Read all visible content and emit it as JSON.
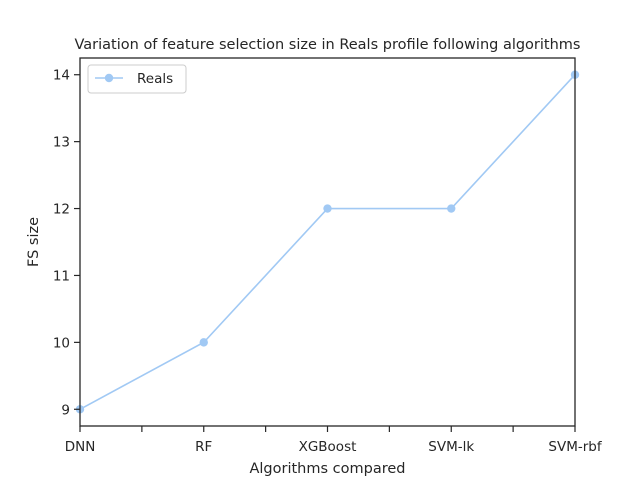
{
  "chart_data": {
    "type": "line",
    "title": "Variation of feature selection size in Reals profile following algorithms",
    "xlabel": "Algorithms compared",
    "ylabel": "FS size",
    "categories": [
      "DNN",
      "RF",
      "XGBoost",
      "SVM-lk",
      "SVM-rbf"
    ],
    "series": [
      {
        "name": "Reals",
        "values": [
          9,
          10,
          12,
          12,
          14
        ],
        "color": "#a1c9f4"
      }
    ],
    "ylim": [
      8.75,
      14.25
    ],
    "yticks": [
      9,
      10,
      11,
      12,
      13,
      14
    ],
    "grid": false,
    "legend_position": "upper-left",
    "axis_color": "#262626"
  }
}
